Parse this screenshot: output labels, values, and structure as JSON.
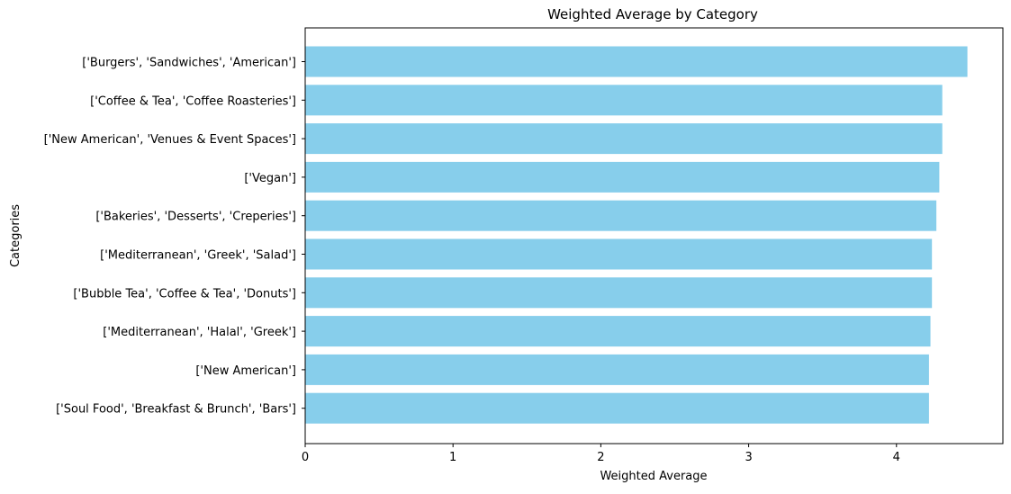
{
  "chart_data": {
    "type": "bar",
    "orientation": "horizontal",
    "title": "Weighted Average by Category",
    "xlabel": "Weighted Average",
    "ylabel": "Categories",
    "xlim": [
      0,
      4.72
    ],
    "xticks": [
      "0",
      "1",
      "2",
      "3",
      "4"
    ],
    "categories": [
      "['Burgers', 'Sandwiches', 'American']",
      "['Coffee & Tea', 'Coffee Roasteries']",
      "['New American', 'Venues & Event Spaces']",
      "['Vegan']",
      "['Bakeries', 'Desserts', 'Creperies']",
      "['Mediterranean', 'Greek', 'Salad']",
      "['Bubble Tea', 'Coffee & Tea', 'Donuts']",
      "['Mediterranean', 'Halal', 'Greek']",
      "['New American']",
      "['Soul Food', 'Breakfast & Brunch', 'Bars']"
    ],
    "values": [
      4.48,
      4.31,
      4.31,
      4.29,
      4.27,
      4.24,
      4.24,
      4.23,
      4.22,
      4.22
    ],
    "bar_color": "#87CEEB",
    "grid": false,
    "legend": "none"
  }
}
